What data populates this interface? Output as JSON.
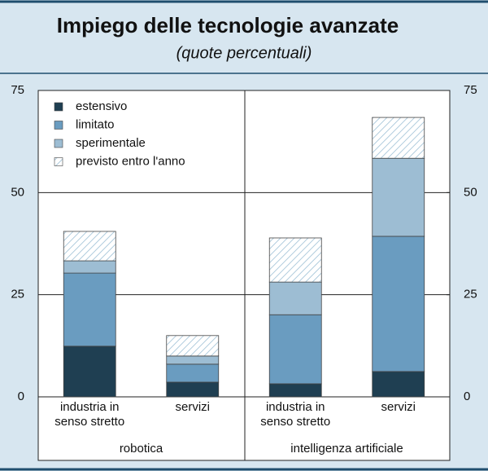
{
  "chart_data": {
    "type": "stacked-bar",
    "title": "Impiego delle tecnologie avanzate",
    "subtitle": "(quote percentuali)",
    "groups": [
      {
        "name": "robotica",
        "categories": [
          "industria in senso stretto",
          "servizi"
        ]
      },
      {
        "name": "intelligenza artificiale",
        "categories": [
          "industria in senso stretto",
          "servizi"
        ]
      }
    ],
    "series": [
      {
        "name": "estensivo",
        "color": "#1f3f52",
        "values": [
          12.4,
          3.6,
          3.2,
          6.2
        ]
      },
      {
        "name": "limitato",
        "color": "#6a9cc0",
        "values": [
          17.9,
          4.4,
          16.9,
          33.1
        ]
      },
      {
        "name": "sperimentale",
        "color": "#9dbdd3",
        "values": [
          3.0,
          2.0,
          8.0,
          19.1
        ]
      },
      {
        "name": "previsto entro l'anno",
        "color": "#8db6cf",
        "pattern": "hatch",
        "values": [
          7.2,
          5.0,
          10.8,
          10.0
        ]
      }
    ],
    "ylim": [
      0,
      75
    ],
    "yticks": [
      0,
      25,
      50,
      75
    ],
    "y2lim": [
      0,
      75
    ],
    "y2ticks": [
      0,
      25,
      50,
      75
    ],
    "grid": true,
    "legend": "top-left"
  }
}
